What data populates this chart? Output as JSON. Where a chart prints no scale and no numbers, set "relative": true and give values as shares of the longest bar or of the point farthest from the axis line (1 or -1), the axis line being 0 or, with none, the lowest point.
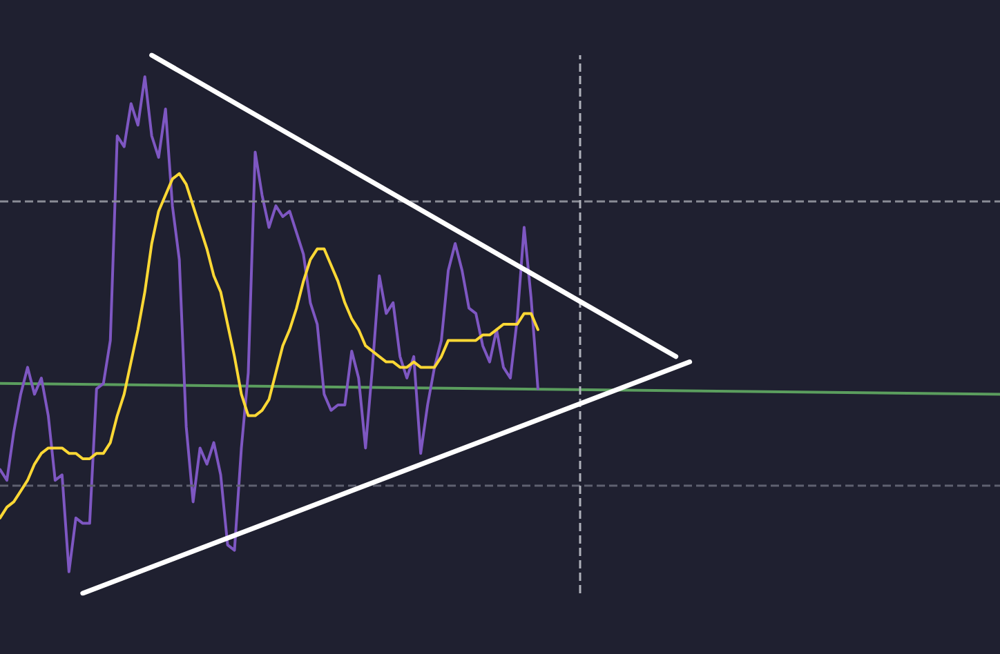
{
  "chart_data": {
    "type": "line",
    "relative": true,
    "line_style": "solid",
    "categories": [
      null,
      null,
      null,
      null,
      null,
      null,
      null,
      null,
      null,
      null,
      null,
      null,
      null,
      null,
      null,
      null,
      null,
      null,
      null,
      null,
      null,
      null,
      null,
      null,
      null,
      null,
      null,
      null,
      null,
      null,
      null,
      null,
      null,
      null,
      null,
      null,
      null,
      null,
      null,
      null,
      null,
      null,
      null,
      null,
      null,
      null,
      null,
      null,
      null,
      null,
      null,
      null,
      null,
      null,
      null,
      null,
      null,
      null,
      null,
      null,
      null,
      null,
      null,
      null,
      null,
      null,
      null,
      null,
      null,
      null,
      null,
      null,
      null,
      null,
      null,
      null,
      null,
      null,
      null,
      null,
      null,
      null,
      null,
      null,
      null,
      null,
      null,
      null,
      null,
      null,
      null,
      null,
      null,
      null,
      null,
      null,
      null,
      null,
      null,
      null,
      null,
      null,
      null,
      null,
      null,
      null,
      null,
      null,
      null,
      null,
      null,
      null,
      null,
      null,
      null,
      null,
      null,
      null,
      null,
      null,
      null,
      null,
      null,
      null,
      null,
      null,
      null,
      null,
      null,
      null,
      null,
      null,
      null,
      null,
      null,
      null,
      null,
      null,
      null,
      null,
      null,
      null,
      null,
      null,
      null,
      null
    ],
    "series": [
      {
        "color": "#5b9e5e",
        "values": [
          0.39,
          null,
          null,
          null,
          null,
          null,
          null,
          null,
          null,
          null,
          null,
          null,
          null,
          null,
          null,
          null,
          null,
          null,
          null,
          null,
          null,
          null,
          null,
          null,
          null,
          null,
          null,
          null,
          null,
          null,
          null,
          null,
          null,
          null,
          null,
          null,
          null,
          null,
          null,
          null,
          null,
          null,
          null,
          null,
          null,
          null,
          null,
          null,
          null,
          null,
          null,
          null,
          null,
          null,
          null,
          null,
          null,
          null,
          null,
          null,
          null,
          null,
          null,
          null,
          null,
          null,
          null,
          null,
          null,
          null,
          null,
          null,
          null,
          null,
          null,
          null,
          null,
          null,
          null,
          null,
          null,
          null,
          null,
          null,
          null,
          null,
          null,
          null,
          null,
          null,
          null,
          null,
          null,
          null,
          null,
          null,
          null,
          null,
          null,
          null,
          null,
          null,
          null,
          null,
          null,
          null,
          null,
          null,
          null,
          null,
          null,
          null,
          null,
          null,
          null,
          null,
          null,
          null,
          null,
          null,
          null,
          null,
          null,
          null,
          null,
          null,
          null,
          null,
          null,
          null,
          null,
          null,
          null,
          null,
          null,
          null,
          null,
          null,
          null,
          null,
          null,
          null,
          null,
          null,
          null,
          0.37
        ]
      },
      {
        "color": "#7e57c2",
        "values": [
          0.23,
          0.21,
          0.3,
          0.37,
          0.42,
          0.37,
          0.4,
          0.33,
          0.21,
          0.22,
          0.04,
          0.14,
          0.13,
          0.13,
          0.38,
          0.39,
          0.47,
          0.85,
          0.83,
          0.91,
          0.87,
          0.96,
          0.85,
          0.81,
          0.9,
          0.72,
          0.62,
          0.31,
          0.17,
          0.27,
          0.24,
          0.28,
          0.22,
          0.09,
          0.08,
          0.27,
          0.41,
          0.82,
          0.74,
          0.68,
          0.72,
          0.7,
          0.71,
          0.67,
          0.63,
          0.54,
          0.5,
          0.37,
          0.34,
          0.35,
          0.35,
          0.45,
          0.4,
          0.27,
          0.42,
          0.59,
          0.52,
          0.54,
          0.44,
          0.4,
          0.44,
          0.26,
          0.35,
          0.42,
          0.47,
          0.6,
          0.65,
          0.6,
          0.53,
          0.52,
          0.46,
          0.43,
          0.49,
          0.42,
          0.4,
          0.51,
          0.68,
          0.55,
          0.38,
          null,
          null,
          null,
          null,
          null,
          null,
          null,
          null,
          null,
          null,
          null,
          null,
          null,
          null,
          null,
          null,
          null,
          null,
          null,
          null,
          null,
          null,
          null,
          null,
          null,
          null,
          null,
          null,
          null,
          null,
          null,
          null,
          null,
          null,
          null,
          null,
          null,
          null,
          null,
          null,
          null,
          null,
          null,
          null,
          null,
          null,
          null,
          null,
          null,
          null,
          null,
          null,
          null,
          null,
          null,
          null,
          null,
          null,
          null,
          null,
          null,
          null,
          null,
          null,
          null,
          null,
          null
        ]
      },
      {
        "color": "#fdd835",
        "values": [
          0.14,
          0.16,
          0.17,
          0.19,
          0.21,
          0.24,
          0.26,
          0.27,
          0.27,
          0.27,
          0.26,
          0.26,
          0.25,
          0.25,
          0.26,
          0.26,
          0.28,
          0.33,
          0.37,
          0.43,
          0.49,
          0.56,
          0.65,
          0.71,
          0.74,
          0.77,
          0.78,
          0.76,
          0.72,
          0.68,
          0.64,
          0.59,
          0.56,
          0.5,
          0.44,
          0.37,
          0.33,
          0.33,
          0.34,
          0.36,
          0.41,
          0.46,
          0.49,
          0.53,
          0.58,
          0.62,
          0.64,
          0.64,
          0.61,
          0.58,
          0.54,
          0.51,
          0.49,
          0.46,
          0.45,
          0.44,
          0.43,
          0.43,
          0.42,
          0.42,
          0.43,
          0.42,
          0.42,
          0.42,
          0.44,
          0.47,
          0.47,
          0.47,
          0.47,
          0.47,
          0.48,
          0.48,
          0.49,
          0.5,
          0.5,
          0.5,
          0.52,
          0.52,
          0.49,
          null,
          null,
          null,
          null,
          null,
          null,
          null,
          null,
          null,
          null,
          null,
          null,
          null,
          null,
          null,
          null,
          null,
          null,
          null,
          null,
          null,
          null,
          null,
          null,
          null,
          null,
          null,
          null,
          null,
          null,
          null,
          null,
          null,
          null,
          null,
          null,
          null,
          null,
          null,
          null,
          null,
          null,
          null,
          null,
          null,
          null,
          null,
          null,
          null,
          null,
          null,
          null,
          null,
          null,
          null,
          null,
          null,
          null,
          null,
          null,
          null,
          null,
          null,
          null,
          null,
          null,
          null
        ]
      },
      {
        "color": "#ffffff",
        "values": [
          null,
          null,
          null,
          null,
          null,
          null,
          null,
          null,
          null,
          null,
          null,
          null,
          null,
          null,
          null,
          null,
          null,
          null,
          null,
          null,
          null,
          null,
          1.0,
          null,
          null,
          null,
          null,
          null,
          null,
          null,
          null,
          null,
          null,
          null,
          null,
          null,
          null,
          null,
          null,
          null,
          null,
          null,
          null,
          null,
          null,
          null,
          null,
          null,
          null,
          null,
          null,
          null,
          null,
          null,
          null,
          null,
          null,
          null,
          null,
          null,
          null,
          null,
          null,
          null,
          null,
          null,
          null,
          null,
          null,
          null,
          null,
          null,
          null,
          null,
          null,
          null,
          null,
          null,
          null,
          null,
          null,
          null,
          null,
          null,
          null,
          null,
          null,
          null,
          null,
          null,
          null,
          null,
          null,
          null,
          null,
          null,
          null,
          null,
          0.44,
          null,
          null,
          null,
          null,
          null,
          null,
          null,
          null,
          null,
          null,
          null,
          null,
          null,
          null,
          null,
          null,
          null,
          null,
          null,
          null,
          null,
          null,
          null,
          null,
          null,
          null,
          null,
          null,
          null,
          null,
          null,
          null,
          null,
          null,
          null,
          null,
          null,
          null,
          null,
          null,
          null,
          null,
          null,
          null,
          null,
          null,
          null
        ]
      },
      {
        "color": "#ffffff",
        "values": [
          null,
          null,
          null,
          null,
          null,
          null,
          null,
          null,
          null,
          null,
          null,
          null,
          0,
          null,
          null,
          null,
          null,
          null,
          null,
          null,
          null,
          null,
          null,
          null,
          null,
          null,
          null,
          null,
          null,
          null,
          null,
          null,
          null,
          null,
          null,
          null,
          null,
          null,
          null,
          null,
          null,
          null,
          null,
          null,
          null,
          null,
          null,
          null,
          null,
          null,
          null,
          null,
          null,
          null,
          null,
          null,
          null,
          null,
          null,
          null,
          null,
          null,
          null,
          null,
          null,
          null,
          null,
          null,
          null,
          null,
          null,
          null,
          null,
          null,
          null,
          null,
          null,
          null,
          null,
          null,
          null,
          null,
          null,
          null,
          null,
          null,
          null,
          null,
          null,
          null,
          null,
          null,
          null,
          null,
          null,
          null,
          null,
          null,
          null,
          null,
          0.43,
          null,
          null,
          null,
          null,
          null,
          null,
          null,
          null,
          null,
          null,
          null,
          null,
          null,
          null,
          null,
          null,
          null,
          null,
          null,
          null,
          null,
          null,
          null,
          null,
          null,
          null,
          null,
          null,
          null,
          null,
          null,
          null,
          null,
          null,
          null,
          null,
          null,
          null,
          null,
          null,
          null,
          null,
          null,
          null,
          null
        ]
      }
    ],
    "ref_lines": [
      {
        "axis": "y",
        "value": 0.73,
        "color": "#8a8c96",
        "line_style": "dashed"
      },
      {
        "axis": "y",
        "value": 0.2,
        "color": "#5f6170",
        "line_style": "dashed"
      }
    ]
  }
}
